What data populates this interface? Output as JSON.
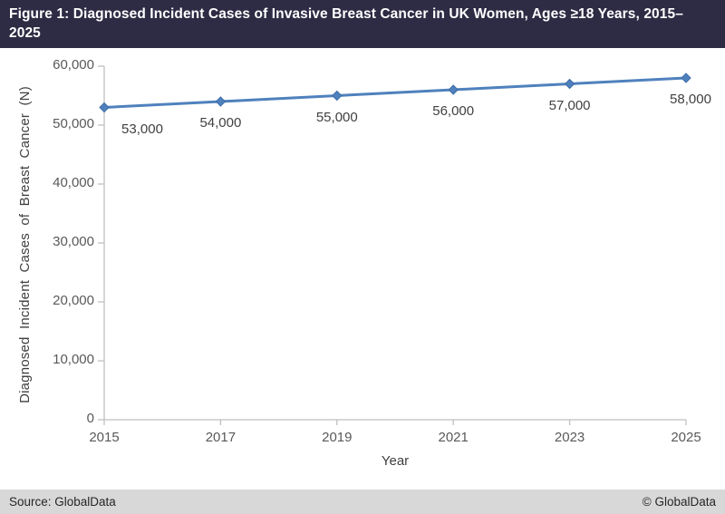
{
  "header": {
    "title_lines": [
      "Figure 1: Diagnosed Incident Cases of Invasive Breast Cancer in UK Women, Ages ≥18 Years, 2015–",
      "2025"
    ]
  },
  "footer": {
    "source": "Source: GlobalData",
    "copyright": "© GlobalData"
  },
  "chart_data": {
    "type": "line",
    "x": [
      2015,
      2017,
      2019,
      2021,
      2023,
      2025
    ],
    "series": [
      {
        "name": "Diagnosed incident cases of invasive breast cancer",
        "values": [
          53000,
          54000,
          55000,
          56000,
          57000,
          58000
        ]
      }
    ],
    "data_labels": [
      "53,000",
      "54,000",
      "55,000",
      "56,000",
      "57,000",
      "58,000"
    ],
    "xlabel": "Year",
    "ylabel": "Diagnosed Incident Cases of Breast Cancer (N)",
    "ylim": [
      0,
      60000
    ],
    "ytick_step": 10000,
    "ytick_labels": [
      "0",
      "10,000",
      "20,000",
      "30,000",
      "40,000",
      "50,000",
      "60,000"
    ],
    "grid": false,
    "legend": false,
    "marker": "diamond",
    "colors": {
      "line": "#4f81bd",
      "marker_fill": "#4f81bd",
      "marker_edge": "#3d6da8",
      "axis": "#bfbfbf",
      "tick_text": "#595959",
      "data_label_text": "#404040",
      "header_bg": "#2e2b44",
      "footer_bg": "#d8d8d8"
    }
  }
}
